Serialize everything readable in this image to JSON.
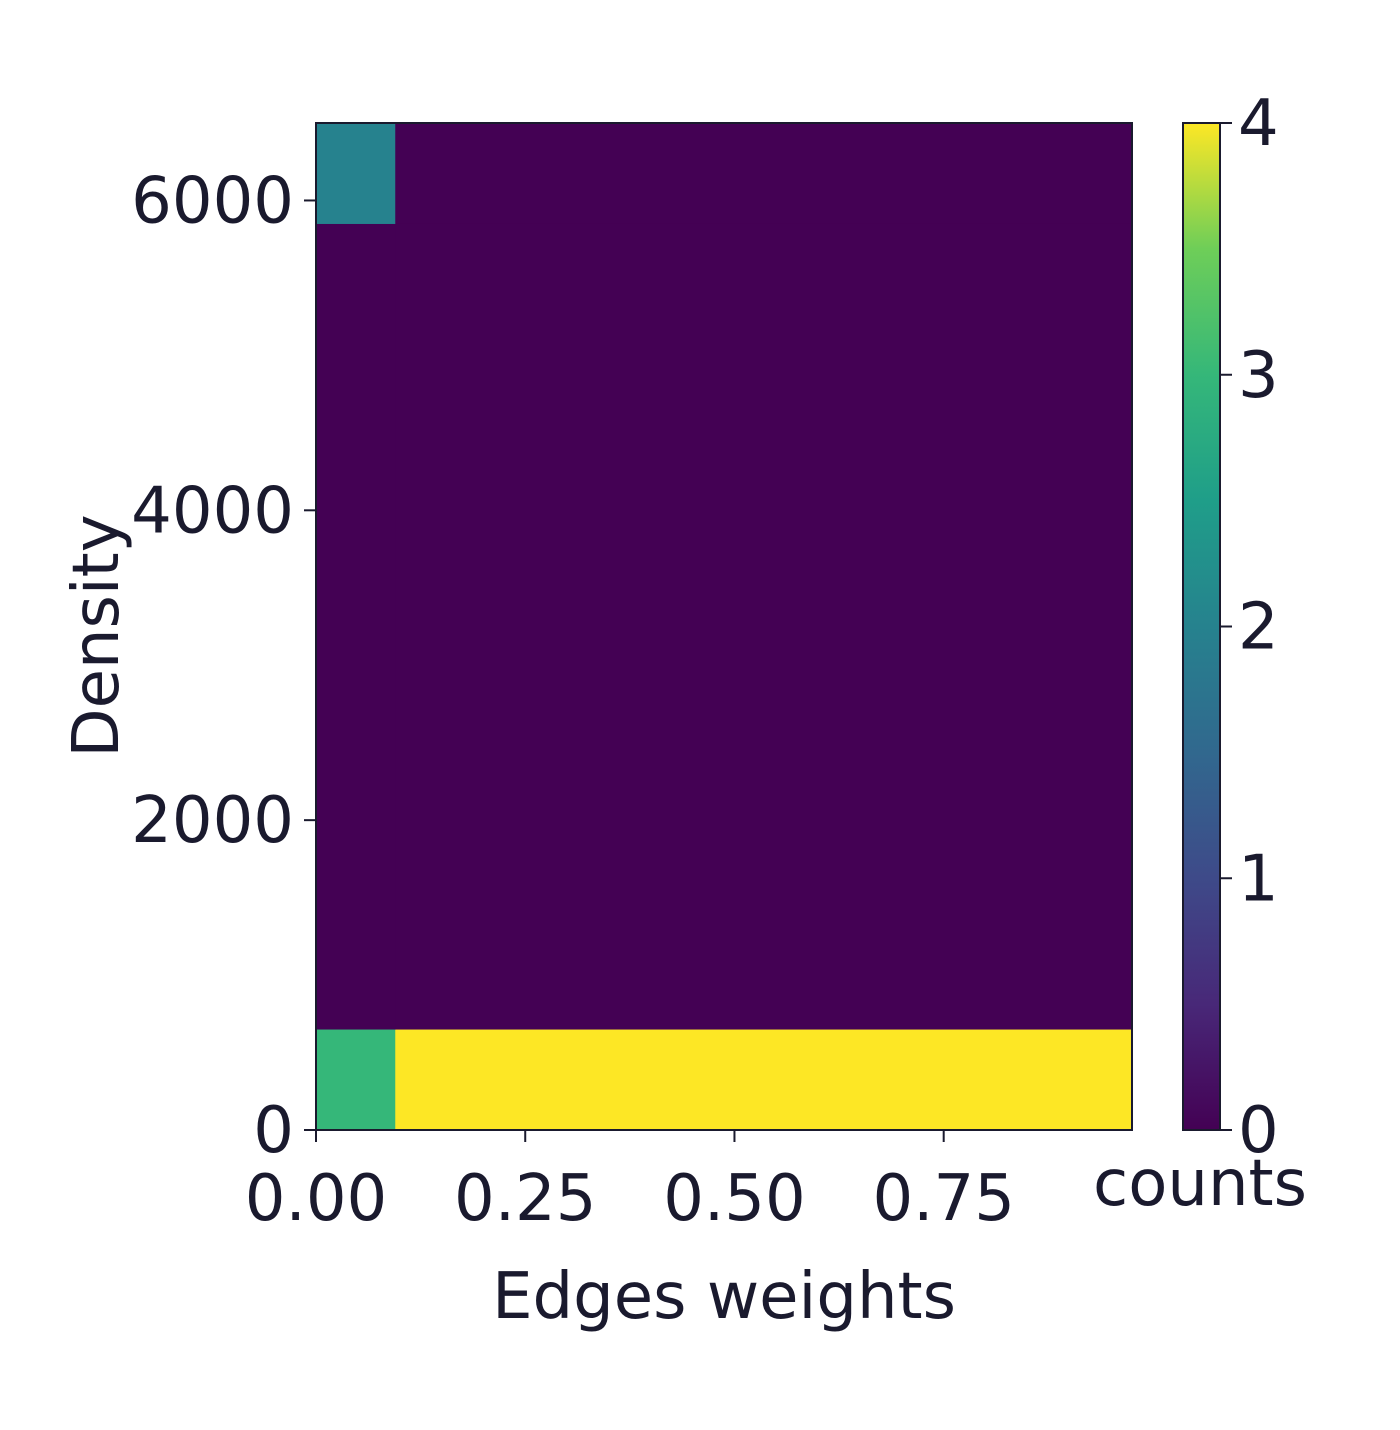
{
  "chart_data": {
    "type": "heatmap",
    "xlabel": "Edges weights",
    "ylabel": "Density",
    "x_edges": [
      0.0,
      0.095,
      0.975
    ],
    "y_edges": [
      0,
      650,
      5850,
      6500
    ],
    "cells": [
      {
        "x0": 0.0,
        "x1": 0.095,
        "y0": 0,
        "y1": 650,
        "count": 3
      },
      {
        "x0": 0.095,
        "x1": 0.975,
        "y0": 0,
        "y1": 650,
        "count": 4
      },
      {
        "x0": 0.0,
        "x1": 0.095,
        "y0": 650,
        "y1": 5850,
        "count": 0
      },
      {
        "x0": 0.095,
        "x1": 0.975,
        "y0": 650,
        "y1": 5850,
        "count": 0
      },
      {
        "x0": 0.0,
        "x1": 0.095,
        "y0": 5850,
        "y1": 6500,
        "count": 2
      },
      {
        "x0": 0.095,
        "x1": 0.975,
        "y0": 5850,
        "y1": 6500,
        "count": 0
      }
    ],
    "xlim": [
      0.0,
      0.975
    ],
    "ylim": [
      0,
      6500
    ],
    "xticks": [
      0.0,
      0.25,
      0.5,
      0.75
    ],
    "xtick_labels": [
      "0.00",
      "0.25",
      "0.50",
      "0.75"
    ],
    "yticks": [
      0,
      2000,
      4000,
      6000
    ],
    "ytick_labels": [
      "0",
      "2000",
      "4000",
      "6000"
    ],
    "colorbar": {
      "label": "counts",
      "range": [
        0,
        4
      ],
      "ticks": [
        0,
        1,
        2,
        3,
        4
      ],
      "tick_labels": [
        "0",
        "1",
        "2",
        "3",
        "4"
      ],
      "colormap": "viridis"
    },
    "grid": false
  }
}
